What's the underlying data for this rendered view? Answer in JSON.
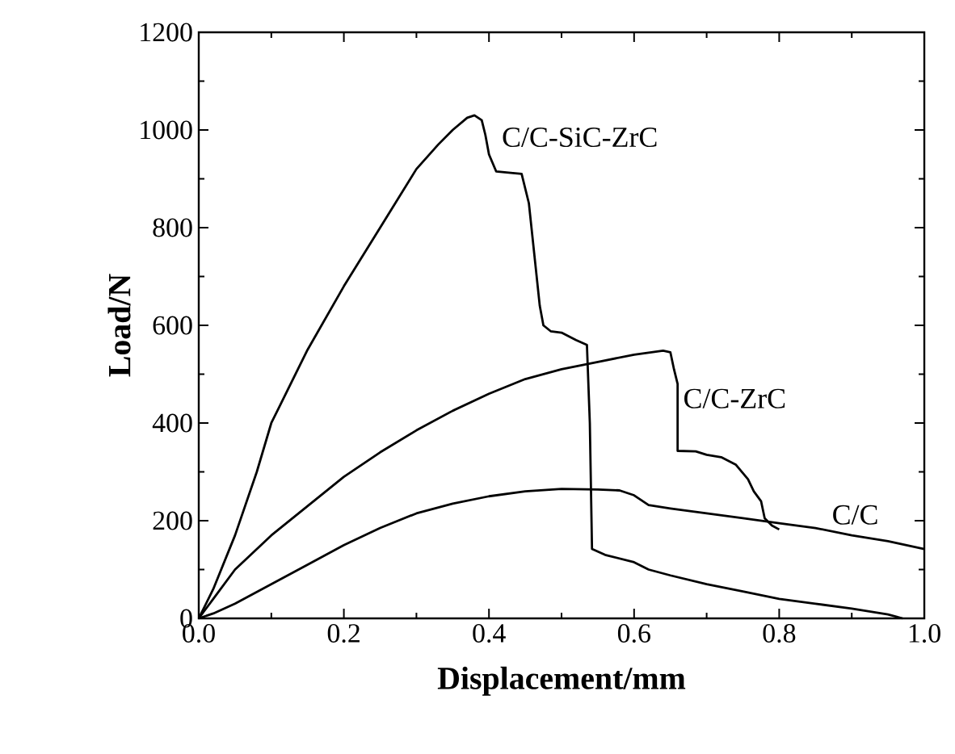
{
  "chart_data": {
    "type": "line",
    "xlabel": "Displacement/mm",
    "ylabel": "Load/N",
    "xlim": [
      0,
      1
    ],
    "ylim": [
      0,
      1200
    ],
    "xticks": [
      {
        "value": 0,
        "label": "0.0"
      },
      {
        "value": 0.2,
        "label": "0.2"
      },
      {
        "value": 0.4,
        "label": "0.4"
      },
      {
        "value": 0.6,
        "label": "0.6"
      },
      {
        "value": 0.8,
        "label": "0.8"
      },
      {
        "value": 1,
        "label": "1.0"
      }
    ],
    "yticks": [
      0,
      200,
      400,
      600,
      800,
      1000,
      1200
    ],
    "grid": false,
    "marker": "none",
    "line_style": "solid",
    "series": [
      {
        "name": "C/C-SiC-ZrC",
        "color": "#000000",
        "x": [
          0,
          0.02,
          0.05,
          0.08,
          0.1,
          0.15,
          0.2,
          0.25,
          0.3,
          0.33,
          0.35,
          0.37,
          0.38,
          0.39,
          0.395,
          0.4,
          0.41,
          0.43,
          0.445,
          0.455,
          0.46,
          0.47,
          0.475,
          0.485,
          0.5,
          0.52,
          0.535,
          0.539,
          0.542,
          0.56,
          0.6,
          0.62,
          0.65,
          0.7,
          0.75,
          0.8,
          0.85,
          0.9,
          0.95,
          0.97
        ],
        "values": [
          0,
          60,
          170,
          300,
          400,
          550,
          680,
          800,
          920,
          970,
          1000,
          1025,
          1030,
          1020,
          990,
          950,
          915,
          912,
          910,
          850,
          780,
          640,
          600,
          588,
          585,
          570,
          560,
          400,
          142,
          130,
          115,
          100,
          88,
          70,
          55,
          40,
          30,
          20,
          8,
          0
        ]
      },
      {
        "name": "C/C-ZrC",
        "color": "#000000",
        "x": [
          0,
          0.02,
          0.05,
          0.1,
          0.15,
          0.2,
          0.25,
          0.3,
          0.35,
          0.4,
          0.45,
          0.5,
          0.55,
          0.6,
          0.64,
          0.65,
          0.655,
          0.66,
          0.66,
          0.685,
          0.7,
          0.72,
          0.74,
          0.757,
          0.765,
          0.775,
          0.78,
          0.79,
          0.8
        ],
        "values": [
          0,
          40,
          100,
          170,
          230,
          290,
          340,
          385,
          425,
          460,
          490,
          510,
          525,
          540,
          548,
          545,
          510,
          480,
          343,
          342,
          335,
          330,
          315,
          285,
          260,
          240,
          205,
          190,
          182
        ]
      },
      {
        "name": "C/C",
        "color": "#000000",
        "x": [
          0,
          0.02,
          0.05,
          0.1,
          0.15,
          0.2,
          0.25,
          0.3,
          0.35,
          0.4,
          0.45,
          0.5,
          0.55,
          0.58,
          0.6,
          0.62,
          0.65,
          0.7,
          0.75,
          0.8,
          0.85,
          0.9,
          0.95,
          1.0
        ],
        "values": [
          0,
          10,
          30,
          70,
          110,
          150,
          185,
          215,
          235,
          250,
          260,
          265,
          264,
          262,
          252,
          232,
          225,
          215,
          205,
          195,
          185,
          170,
          158,
          142
        ]
      }
    ]
  }
}
